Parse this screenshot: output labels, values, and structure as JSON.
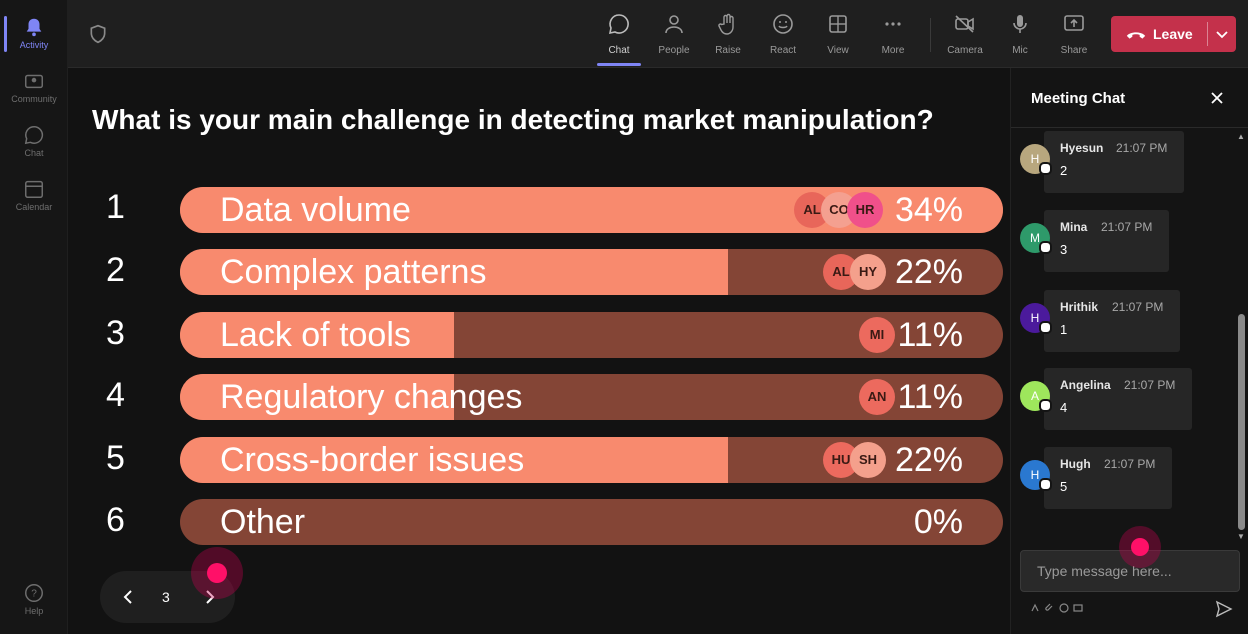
{
  "rail": {
    "items": [
      {
        "label": "Activity",
        "icon": "bell-icon",
        "active": true
      },
      {
        "label": "Community",
        "icon": "community-icon"
      },
      {
        "label": "Chat",
        "icon": "chat-icon"
      },
      {
        "label": "Calendar",
        "icon": "calendar-icon"
      }
    ],
    "help": {
      "label": "Help",
      "icon": "help-icon"
    }
  },
  "toolbar": {
    "chat": "Chat",
    "people": "People",
    "raise": "Raise",
    "react": "React",
    "view": "View",
    "more": "More",
    "camera": "Camera",
    "mic": "Mic",
    "share": "Share",
    "leave": "Leave"
  },
  "poll": {
    "question": "What is your main challenge in detecting market manipulation?",
    "options": [
      {
        "num": "1",
        "label": "Data volume",
        "pct": "34%",
        "fill_fraction": 1.0
      },
      {
        "num": "2",
        "label": "Complex patterns",
        "pct": "22%",
        "fill_fraction": 0.666
      },
      {
        "num": "3",
        "label": "Lack of tools",
        "pct": "11%",
        "fill_fraction": 0.333
      },
      {
        "num": "4",
        "label": "Regulatory changes",
        "pct": "11%",
        "fill_fraction": 0.333
      },
      {
        "num": "5",
        "label": "Cross-border issues",
        "pct": "22%",
        "fill_fraction": 0.666
      },
      {
        "num": "6",
        "label": "Other",
        "pct": "0%",
        "fill_fraction": 0.0
      }
    ],
    "avatars": {
      "opt1": [
        "AL",
        "CO",
        "HR"
      ],
      "opt2": [
        "AL",
        "HY"
      ],
      "opt3": [
        "MI"
      ],
      "opt4": [
        "AN"
      ],
      "opt5": [
        "HU",
        "SH"
      ]
    },
    "avatar_colors": {
      "AL": "#e8665a",
      "CO": "#f4a090",
      "HR": "#f0508a",
      "HY": "#f4a08c",
      "MI": "#ec6a5e",
      "AN": "#ec6a5e",
      "HU": "#ec6a5e",
      "SH": "#f4a08c"
    },
    "page": "3"
  },
  "chat": {
    "title": "Meeting Chat",
    "messages": [
      {
        "initial": "H",
        "name": "Hyesun",
        "time": "21:07 PM",
        "text": "2",
        "color": "#b8a77e"
      },
      {
        "initial": "M",
        "name": "Mina",
        "time": "21:07 PM",
        "text": "3",
        "color": "#2e9a6a"
      },
      {
        "initial": "H",
        "name": "Hrithik",
        "time": "21:07 PM",
        "text": "1",
        "color": "#4b1a9c"
      },
      {
        "initial": "A",
        "name": "Angelina",
        "time": "21:07 PM",
        "text": "4",
        "color": "#9ee65c"
      },
      {
        "initial": "H",
        "name": "Hugh",
        "time": "21:07 PM",
        "text": "5",
        "color": "#2a78d0"
      }
    ],
    "placeholder": "Type message here..."
  },
  "colors": {
    "bar_track": "#844536",
    "bar_fill": "#f88a6e",
    "leave": "#c4314b",
    "accent": "#7f85f5"
  }
}
